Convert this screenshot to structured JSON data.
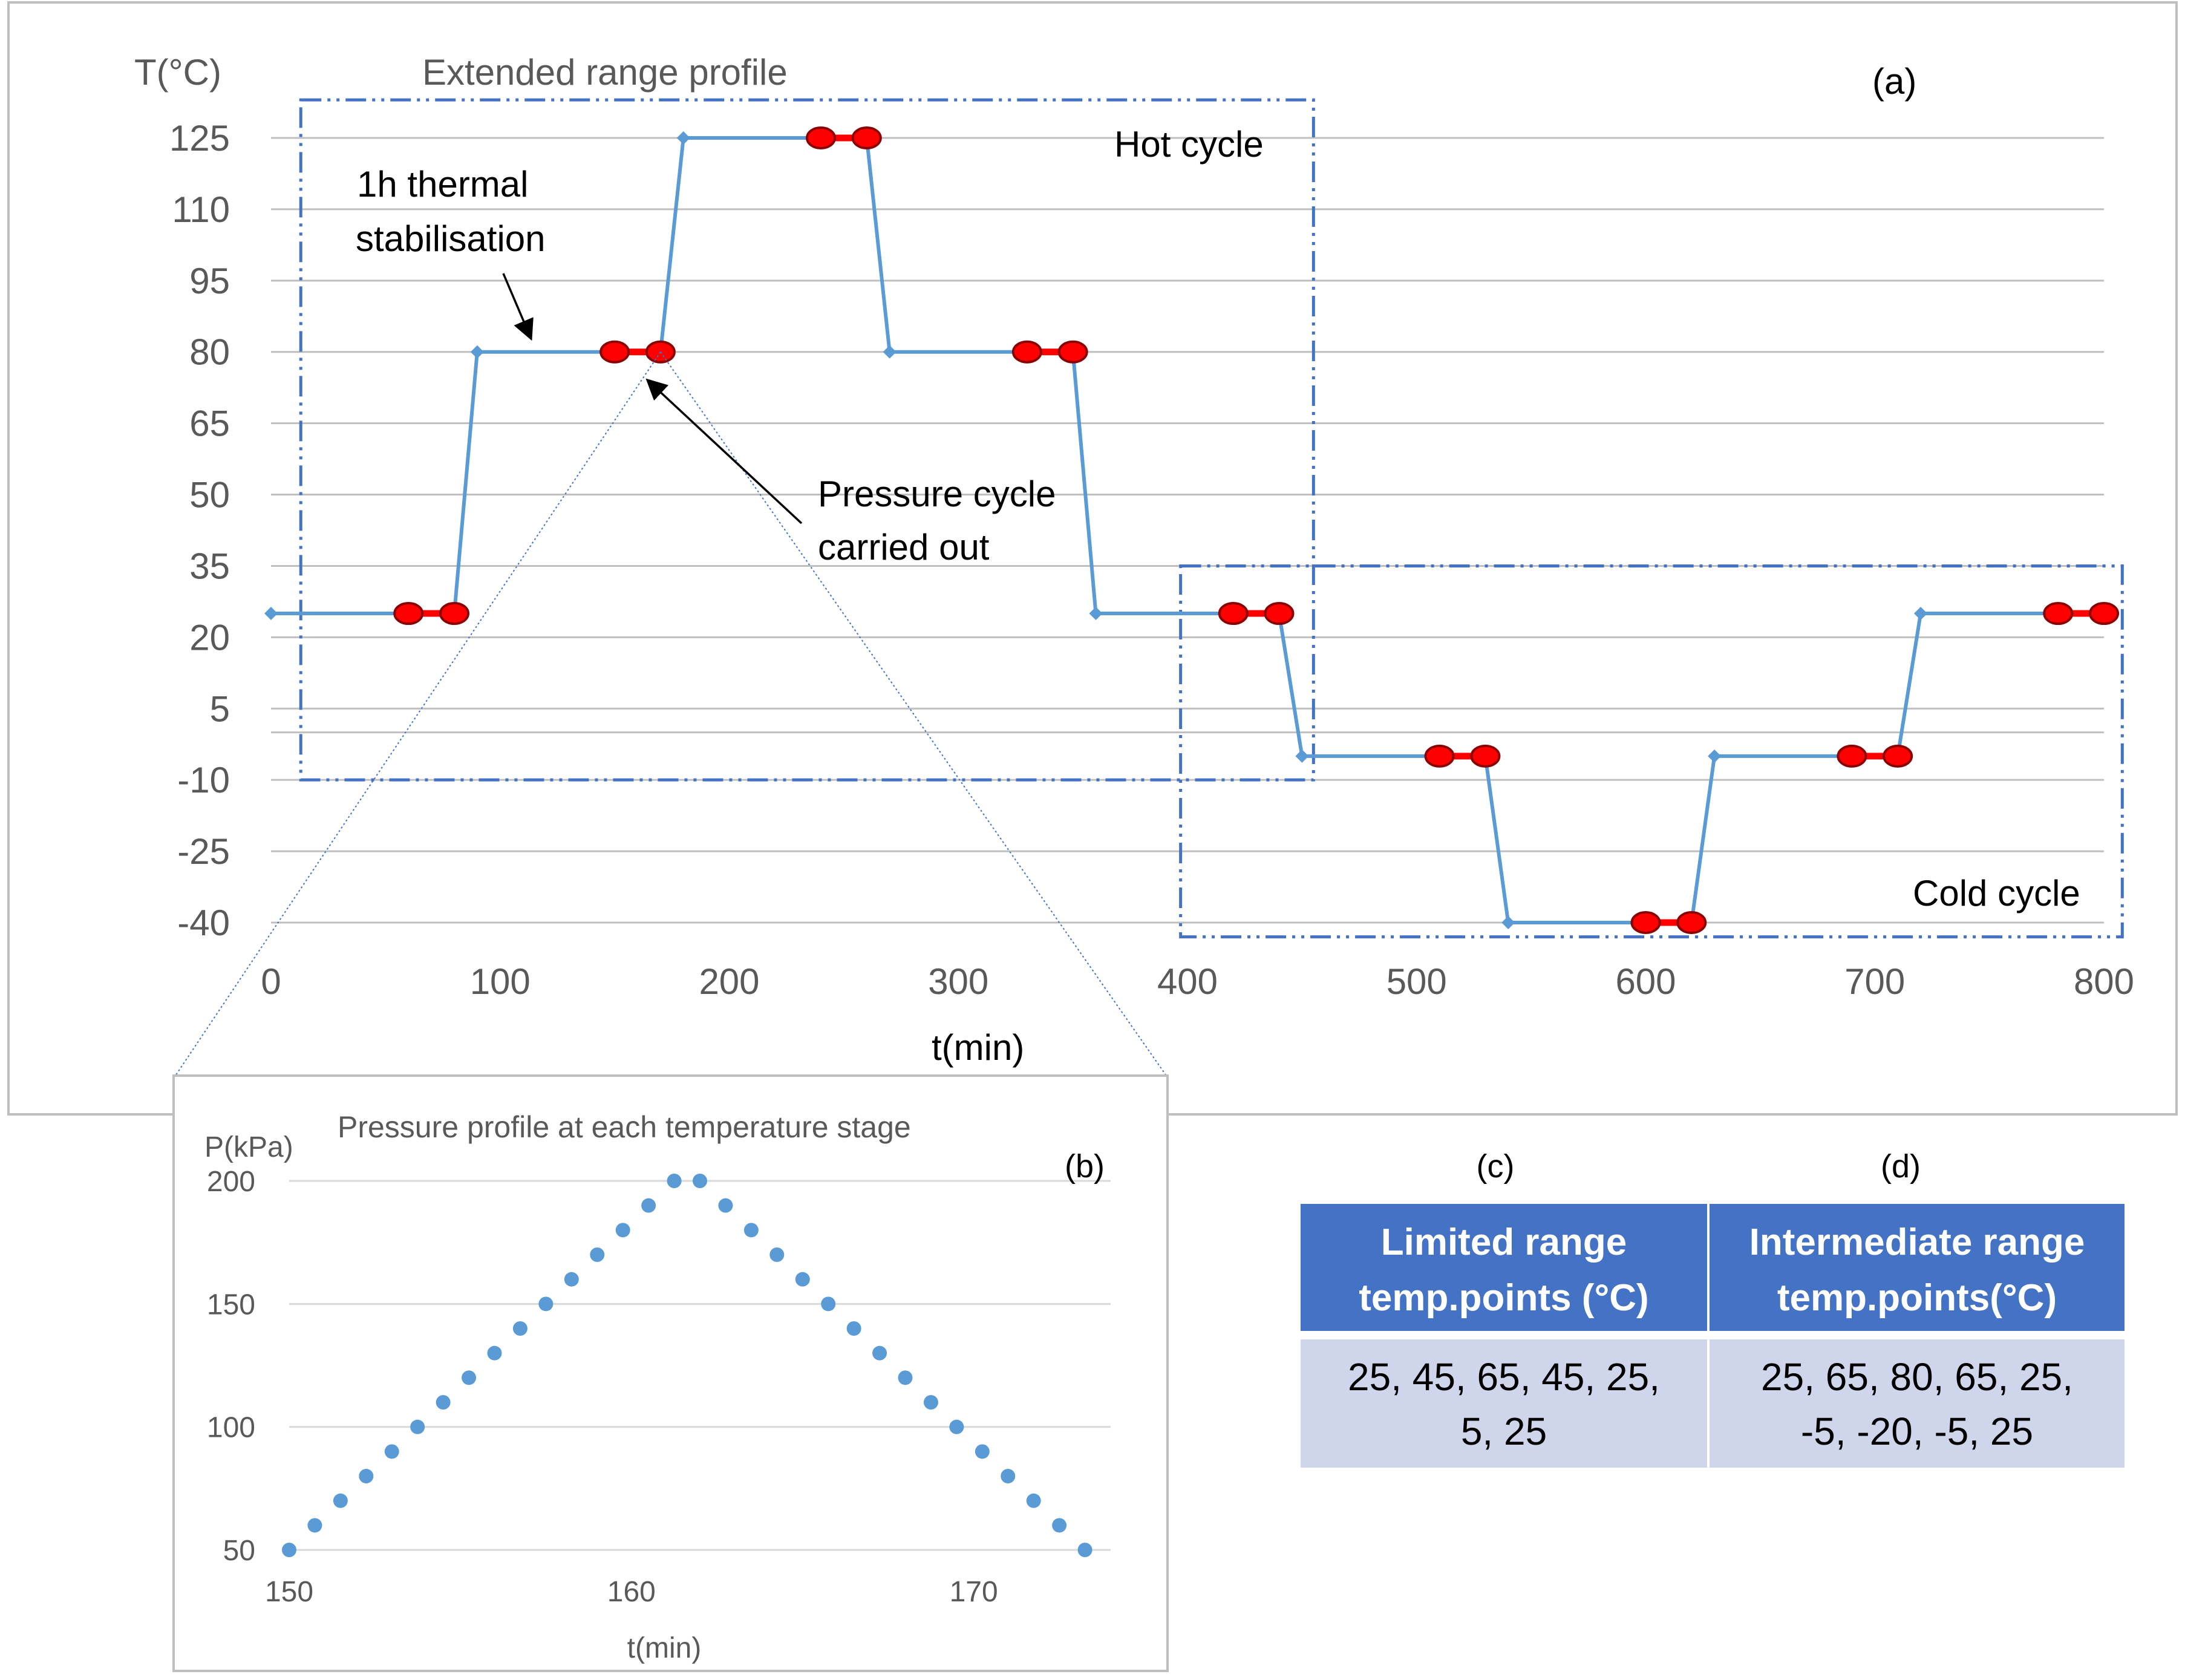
{
  "chart_data": [
    {
      "id": "a",
      "panel_label": "(a)",
      "type": "line",
      "title": "Extended range profile",
      "xlabel": "t(min)",
      "ylabel": "T(°C)",
      "xlim": [
        0,
        800
      ],
      "ylim": [
        -40,
        125
      ],
      "xticks": [
        "0",
        "100",
        "200",
        "300",
        "400",
        "500",
        "600",
        "700",
        "800"
      ],
      "yticks": [
        "125",
        "110",
        "95",
        "80",
        "65",
        "50",
        "35",
        "20",
        "5",
        "-10",
        "-25",
        "-40"
      ],
      "series": [
        {
          "name": "Temperature",
          "color": "#5b9bd5",
          "x": [
            0,
            80,
            90,
            170,
            180,
            260,
            270,
            350,
            360,
            440,
            450,
            530,
            540,
            620,
            630,
            710,
            720,
            800
          ],
          "y": [
            25,
            25,
            80,
            80,
            125,
            125,
            80,
            80,
            25,
            25,
            -5,
            -5,
            -40,
            -40,
            -5,
            -5,
            25,
            25
          ]
        }
      ],
      "pressure_cycle_segments": {
        "color": "#ff0000",
        "ranges": [
          [
            60,
            80,
            25
          ],
          [
            150,
            170,
            80
          ],
          [
            240,
            260,
            125
          ],
          [
            330,
            350,
            80
          ],
          [
            420,
            440,
            25
          ],
          [
            510,
            530,
            -5
          ],
          [
            600,
            620,
            -40
          ],
          [
            690,
            710,
            -5
          ],
          [
            780,
            800,
            25
          ]
        ]
      },
      "cycle_boxes": [
        {
          "label": "Hot cycle",
          "x": [
            13,
            455
          ],
          "y": [
            -10,
            133
          ]
        },
        {
          "label": "Cold cycle",
          "x": [
            397,
            808
          ],
          "y": [
            -43,
            35
          ]
        }
      ],
      "annotations": {
        "stabilisation_line1": "1h thermal",
        "stabilisation_line2": "stabilisation",
        "pressure_line1": "Pressure cycle",
        "pressure_line2": "carried out"
      }
    },
    {
      "id": "b",
      "panel_label": "(b)",
      "type": "scatter",
      "title": "Pressure profile at each temperature stage",
      "xlabel": "t(min)",
      "ylabel": "P(kPa)",
      "xlim": [
        150,
        174
      ],
      "ylim": [
        50,
        200
      ],
      "xticks": [
        "150",
        "160",
        "170"
      ],
      "yticks": [
        "200",
        "150",
        "100",
        "50"
      ],
      "series": [
        {
          "name": "Pressure",
          "color": "#5b9bd5",
          "x": [
            150,
            150.75,
            151.5,
            152.25,
            153,
            153.75,
            154.5,
            155.25,
            156,
            156.75,
            157.5,
            158.25,
            159,
            159.75,
            160.5,
            161.25,
            162,
            162.75,
            163.5,
            164.25,
            165,
            165.75,
            166.5,
            167.25,
            168,
            168.75,
            169.5,
            170.25,
            171,
            171.75,
            172.5,
            173.25
          ],
          "y": [
            50,
            60,
            70,
            80,
            90,
            100,
            110,
            120,
            130,
            140,
            150,
            160,
            170,
            180,
            190,
            200,
            200,
            190,
            180,
            170,
            160,
            150,
            140,
            130,
            120,
            110,
            100,
            90,
            80,
            70,
            60,
            50
          ]
        }
      ]
    },
    {
      "id": "cd",
      "type": "table",
      "panel_labels": [
        "(c)",
        "(d)"
      ],
      "columns": [
        {
          "header_line1": "Limited range",
          "header_line2": "temp.points (°C)",
          "value_line1": "25, 45, 65, 45, 25,",
          "value_line2": "5, 25"
        },
        {
          "header_line1": "Intermediate range",
          "header_line2": "temp.points(°C)",
          "value_line1": "25, 65, 80, 65, 25,",
          "value_line2": "-5, -20, -5, 25"
        }
      ],
      "header_color": "#4472c4",
      "cell_color": "#cfd5ea"
    }
  ]
}
